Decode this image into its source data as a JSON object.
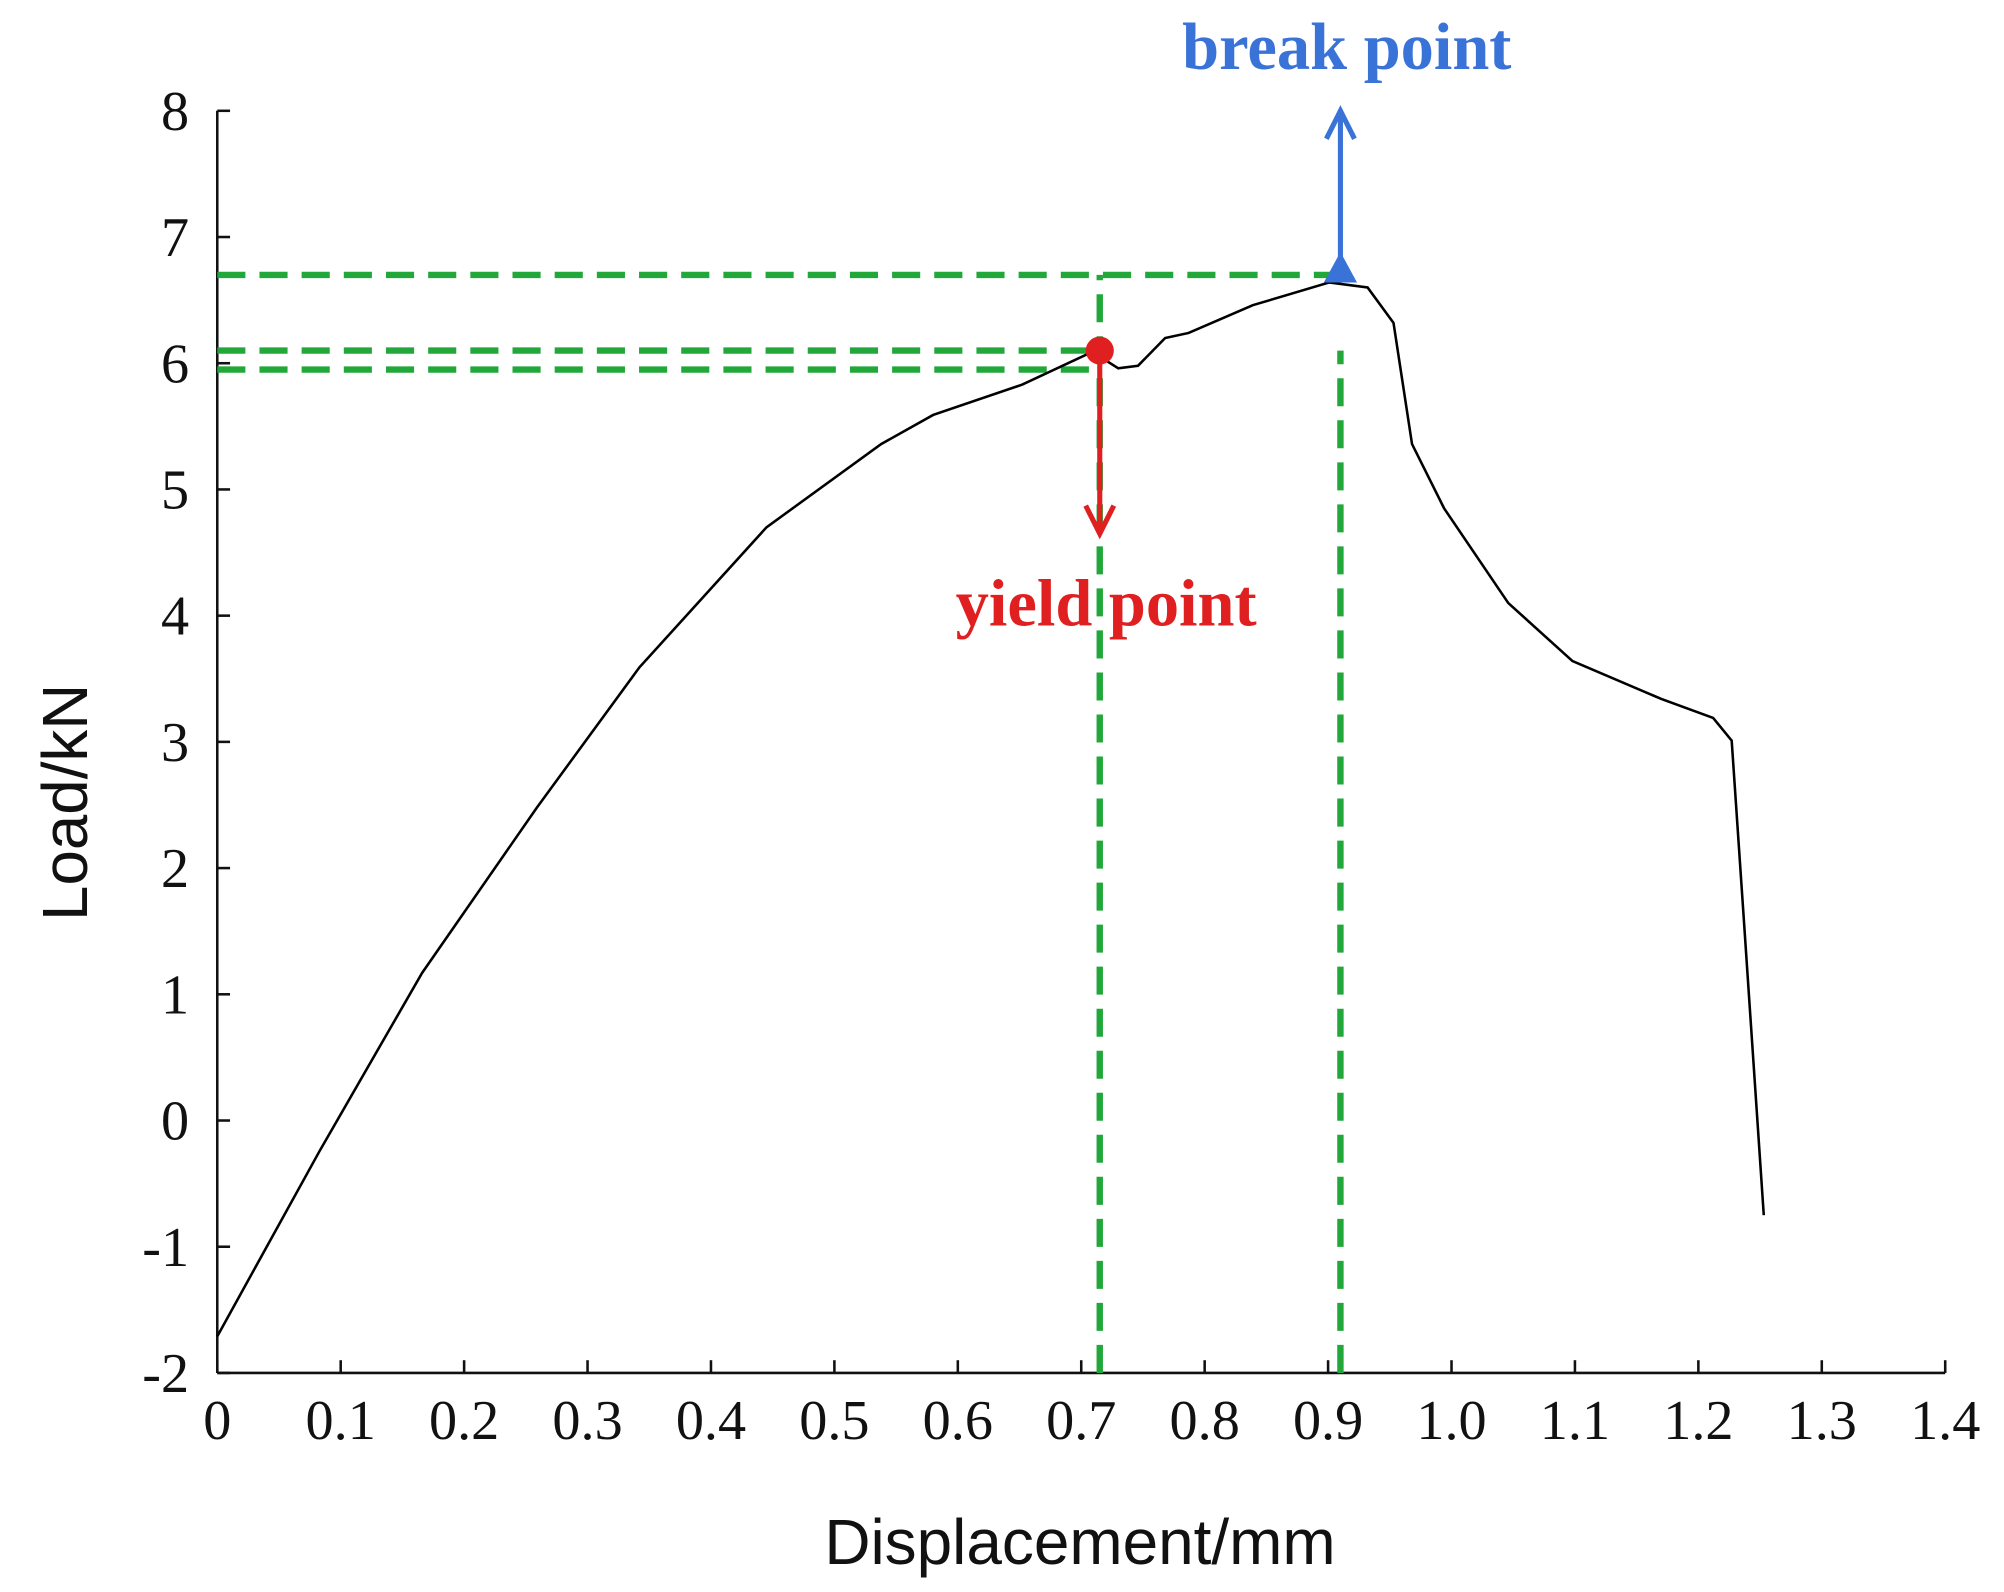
{
  "chart_data": {
    "type": "line",
    "x_label": "Displacement/mm",
    "y_label": "Load/kN",
    "xlim": [
      0,
      1.4
    ],
    "ylim": [
      -2,
      8
    ],
    "xticks": [
      0,
      0.1,
      0.2,
      0.3,
      0.4,
      0.5,
      0.6,
      0.7,
      0.8,
      0.9,
      {
        "value": 1.0,
        "label": "1.0"
      },
      1.1,
      1.2,
      1.3,
      1.4
    ],
    "yticks": [
      -2,
      -1,
      0,
      1,
      2,
      3,
      4,
      5,
      6,
      7,
      8
    ],
    "series": [
      {
        "color": "#000000",
        "x": [
          0,
          0.083,
          0.166,
          0.259,
          0.342,
          0.445,
          0.538,
          0.58,
          0.652,
          0.709,
          0.73,
          0.746,
          0.768,
          0.787,
          0.839,
          0.901,
          0.932,
          0.953,
          0.968,
          0.994,
          1.046,
          1.098,
          1.17,
          1.212,
          1.227,
          1.237,
          1.253
        ],
        "values": [
          -1.71,
          -0.24,
          1.17,
          2.48,
          3.59,
          4.7,
          5.36,
          5.59,
          5.83,
          6.09,
          5.96,
          5.98,
          6.2,
          6.24,
          6.46,
          6.64,
          6.6,
          6.32,
          5.36,
          4.85,
          4.1,
          3.64,
          3.34,
          3.19,
          3.01,
          1.57,
          -0.75
        ]
      }
    ],
    "points": [
      {
        "label": "yield point",
        "x": 0.715,
        "y": 6.1,
        "color": "#e02020",
        "arrow_to": 4.65
      },
      {
        "label": "break point",
        "x": 0.91,
        "y": 6.7,
        "color": "#3a73d8",
        "arrow_to": 8
      }
    ],
    "reference_lines": {
      "color": "#22a83a",
      "y": [
        6.7,
        6.1,
        5.95
      ],
      "x_end": [
        0.91,
        0.715,
        0.715
      ],
      "x": [
        0.715,
        0.91
      ]
    }
  }
}
